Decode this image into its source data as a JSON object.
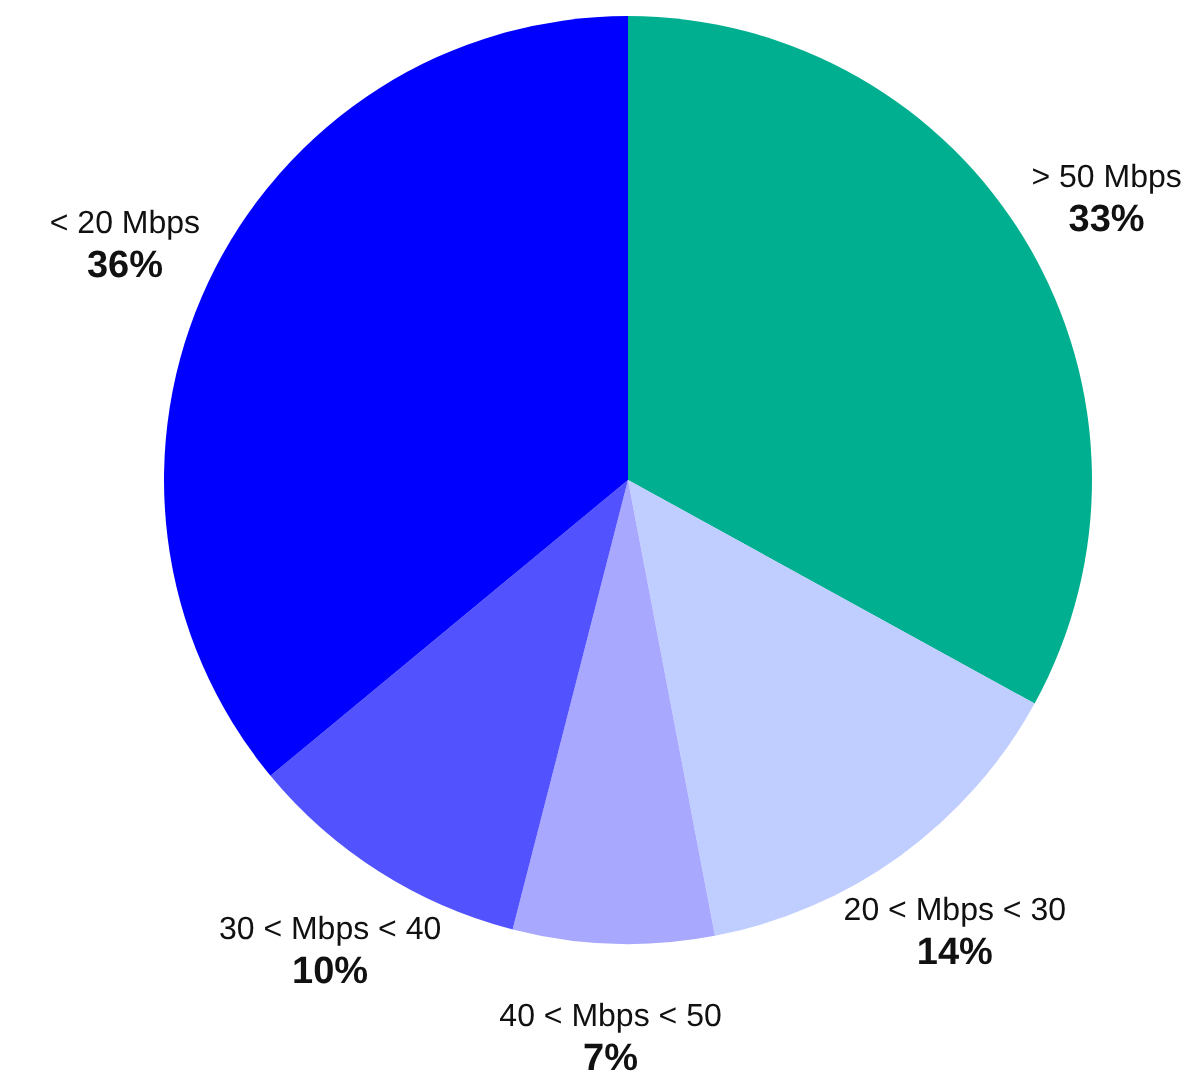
{
  "chart_data": {
    "type": "pie",
    "categories": [
      "> 50 Mbps",
      "20 < Mbps < 30",
      "40 < Mbps < 50",
      "30 < Mbps < 40",
      "< 20 Mbps"
    ],
    "values": [
      33,
      14,
      7,
      10,
      36
    ],
    "colors": [
      "#00af8f",
      "#c0cdff",
      "#a8a8ff",
      "#5252ff",
      "#0000ff"
    ],
    "value_labels": [
      "33%",
      "14%",
      "7%",
      "10%",
      "36%"
    ]
  }
}
